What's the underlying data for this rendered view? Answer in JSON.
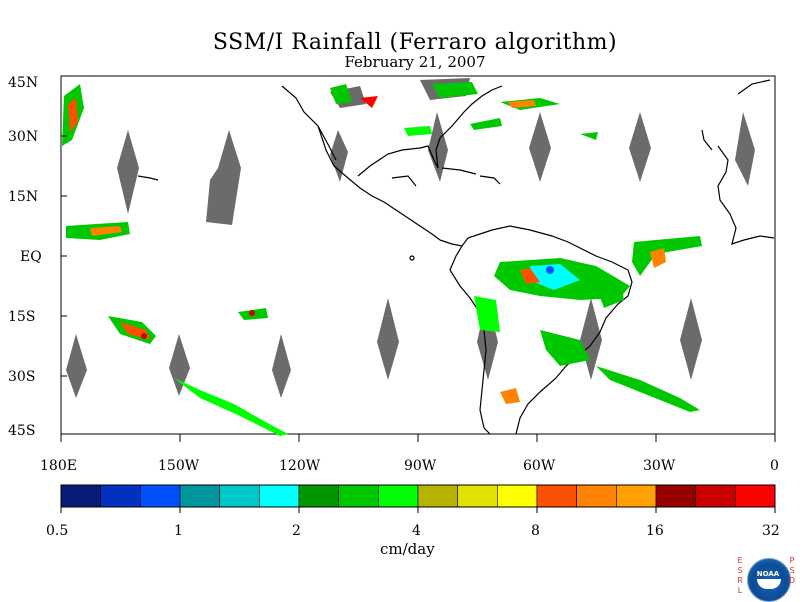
{
  "title": "SSM/I Rainfall (Ferraro algorithm)",
  "date": "February 21, 2007",
  "colorbar": {
    "unit": "cm/day",
    "tick_labels": [
      "0.5",
      "1",
      "2",
      "4",
      "8",
      "16",
      "32"
    ],
    "colors": [
      "#0a1a78",
      "#0032be",
      "#0050ff",
      "#00969b",
      "#00c8c8",
      "#00ffff",
      "#009600",
      "#00c800",
      "#00ff00",
      "#b4b400",
      "#e1e100",
      "#ffff00",
      "#ff5000",
      "#ff8200",
      "#ffa000",
      "#960000",
      "#c80000",
      "#ff0000"
    ]
  },
  "map": {
    "lat_labels": [
      "45N",
      "30N",
      "15N",
      "EQ",
      "15S",
      "30S",
      "45S"
    ],
    "lon_labels": [
      "180E",
      "150W",
      "120W",
      "90W",
      "60W",
      "30W",
      "0"
    ],
    "no_data_color": "#6b6b6b",
    "coastline_color": "#000000"
  },
  "logo": {
    "left_letters": "ESRL",
    "right_letters": "PSD",
    "seal_text": "NOAA"
  }
}
